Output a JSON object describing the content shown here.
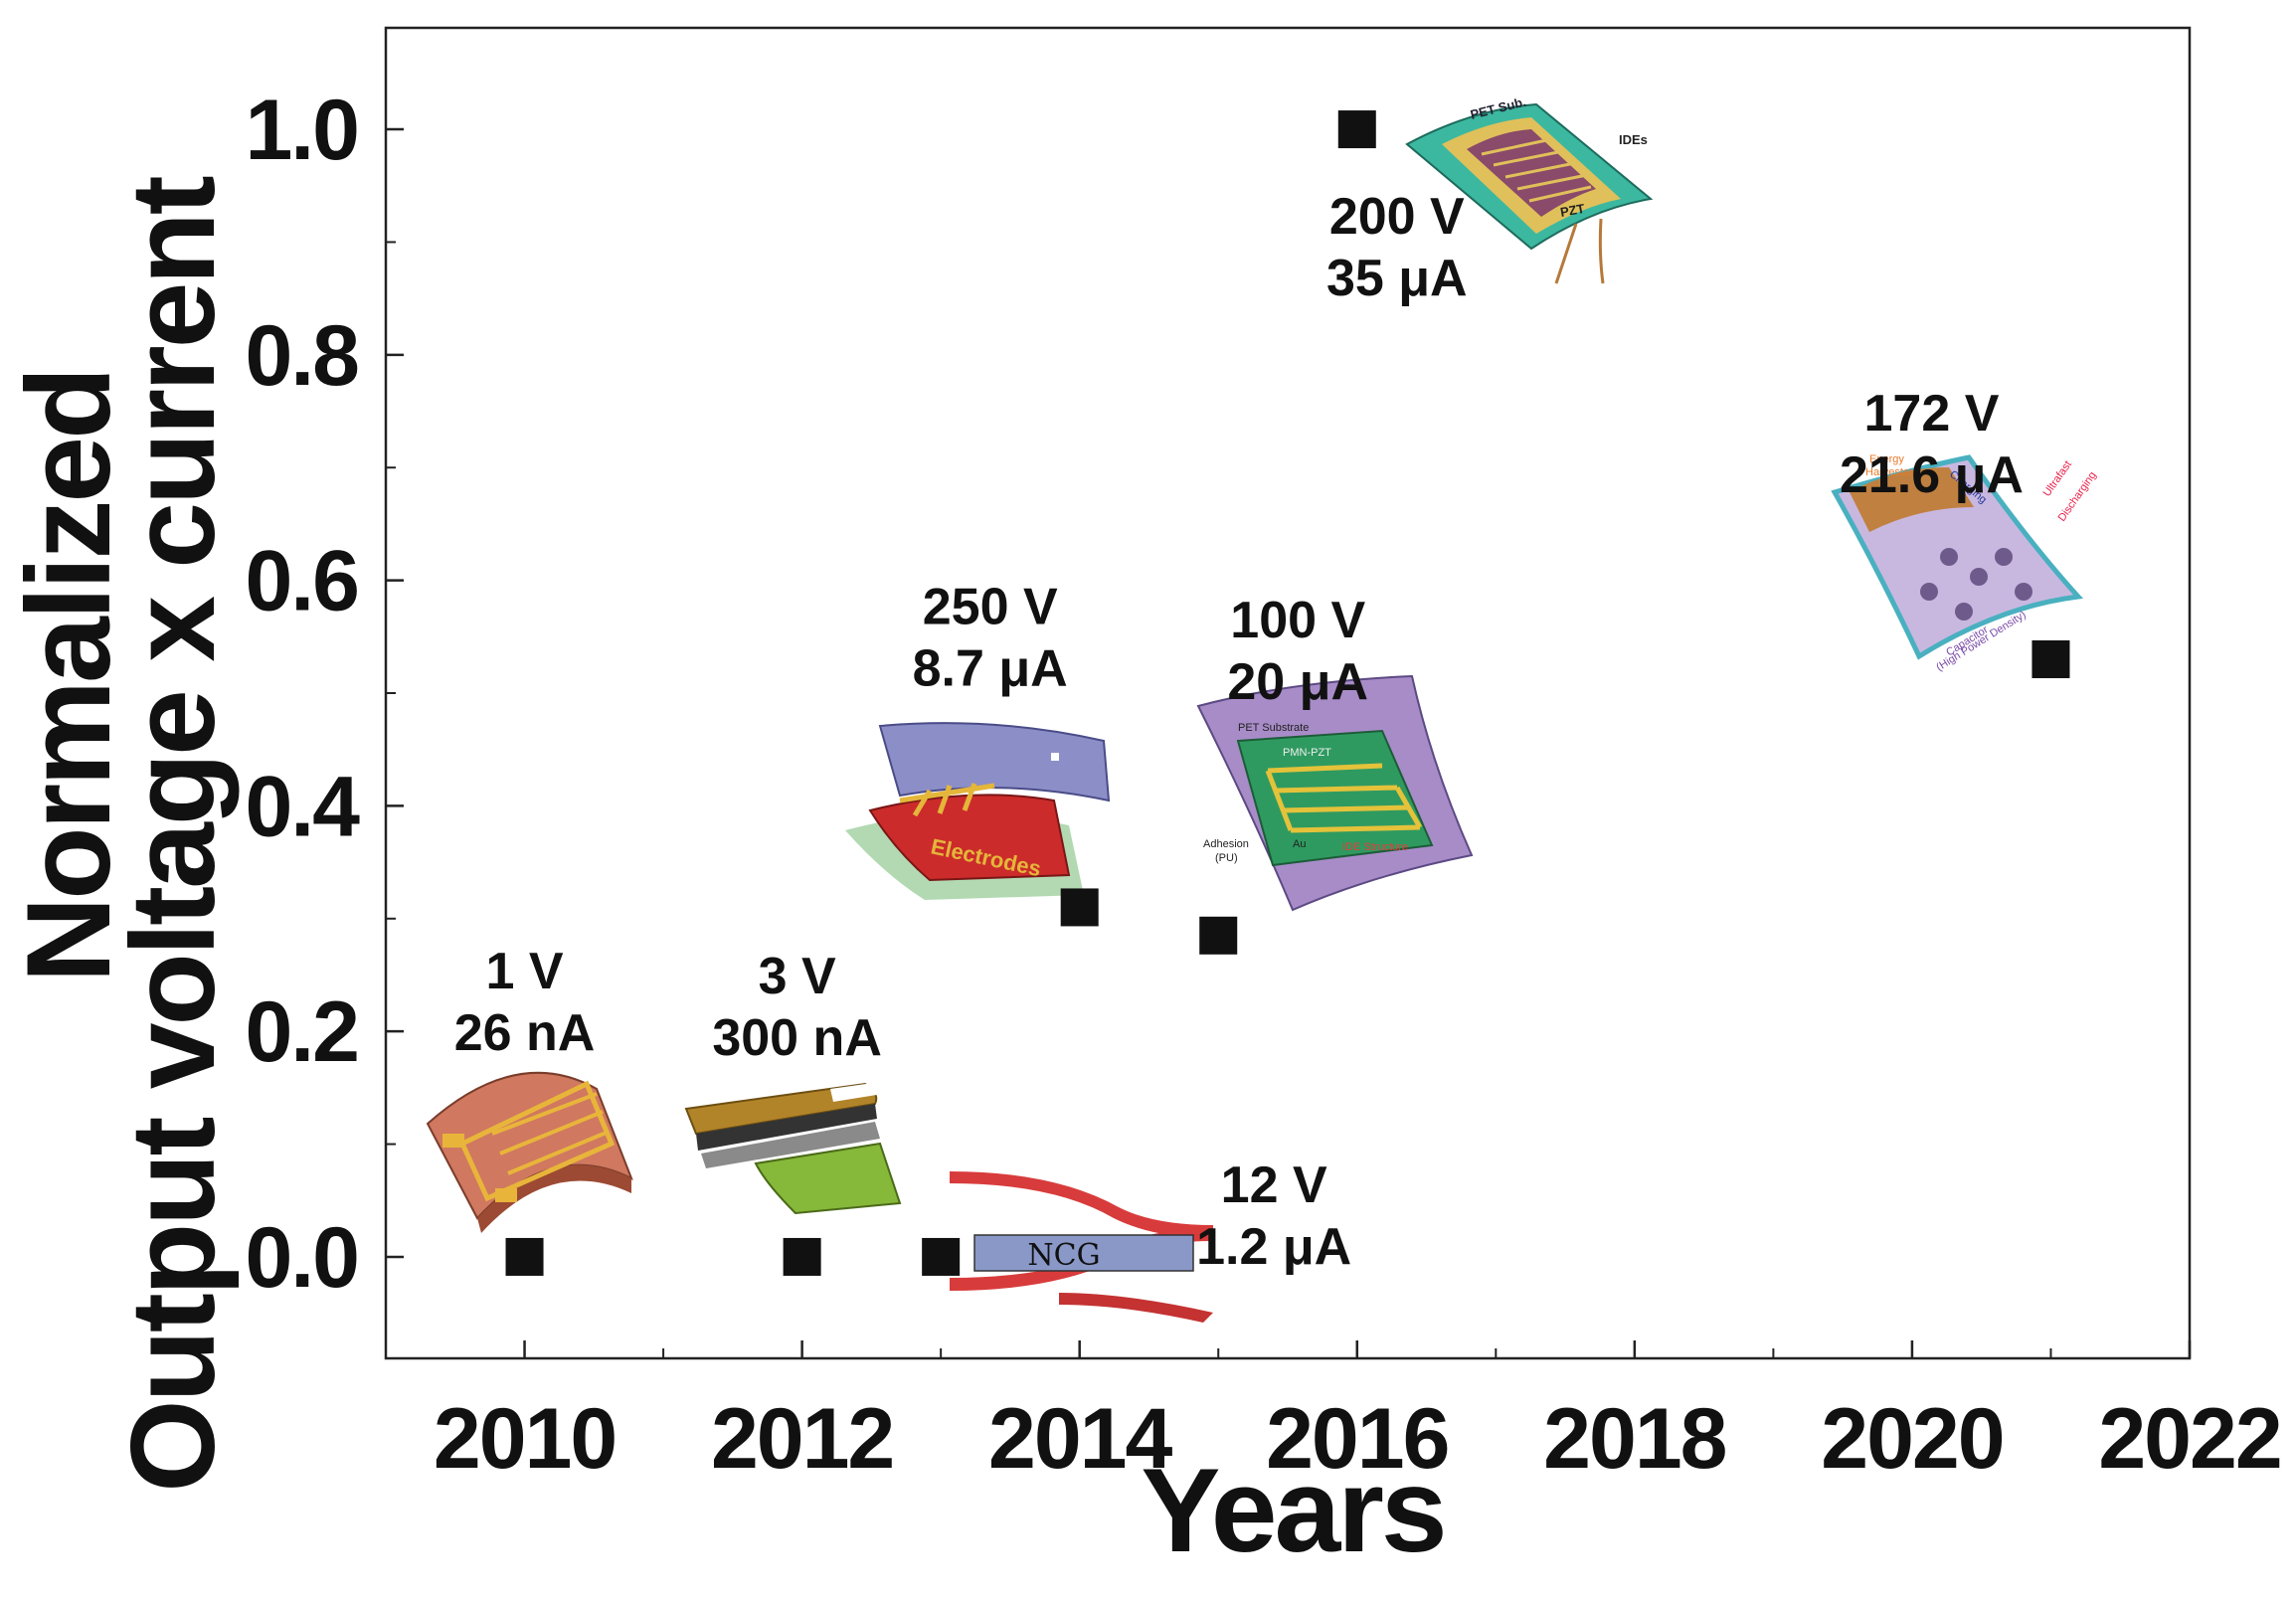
{
  "chart_data": {
    "type": "scatter",
    "title": "",
    "xlabel": "Years",
    "ylabel_line1": "Normalized",
    "ylabel_line2": "Output voltage x current",
    "xlim": [
      2009,
      2022
    ],
    "ylim": [
      -0.09,
      1.09
    ],
    "xticks": [
      2010,
      2012,
      2014,
      2016,
      2018,
      2020,
      2022
    ],
    "yticks": [
      0.0,
      0.2,
      0.4,
      0.6,
      0.8,
      1.0
    ],
    "ytick_labels": [
      "0.0",
      "0.2",
      "0.4",
      "0.6",
      "0.8",
      "1.0"
    ],
    "marker": "square",
    "marker_color": "#111111",
    "points": [
      {
        "x": 2010,
        "y": 0.0,
        "voltage": "1 V",
        "current": "26 nA"
      },
      {
        "x": 2012,
        "y": 0.0,
        "voltage": "3 V",
        "current": "300 nA"
      },
      {
        "x": 2013,
        "y": 0.0,
        "voltage": "12 V",
        "current": "1.2 μA",
        "inset_text": "NCG"
      },
      {
        "x": 2014,
        "y": 0.31,
        "voltage": "250 V",
        "current": "8.7 μA",
        "inset_text": "Electrodes"
      },
      {
        "x": 2015,
        "y": 0.285,
        "voltage": "100 V",
        "current": "20 μA",
        "inset_text_1": "PET Substrate",
        "inset_text_2": "PMN-PZT",
        "inset_text_3": "IDE Structure",
        "inset_text_4": "Adhesion",
        "inset_text_5": "(PU)",
        "inset_text_6": "Au"
      },
      {
        "x": 2016,
        "y": 1.0,
        "voltage": "200 V",
        "current": "35 μA",
        "inset_text_1": "PET Sub.",
        "inset_text_2": "IDEs",
        "inset_text_3": "PZT"
      },
      {
        "x": 2021,
        "y": 0.53,
        "voltage": "172 V",
        "current": "21.6 μA",
        "inset_text_1": "Energy",
        "inset_text_2": "Harvester",
        "inset_text_3": "Charging",
        "inset_text_4": "Ultrafast",
        "inset_text_5": "Discharging",
        "inset_text_6": "Capacitor",
        "inset_text_7": "(High Power Density)"
      }
    ]
  }
}
